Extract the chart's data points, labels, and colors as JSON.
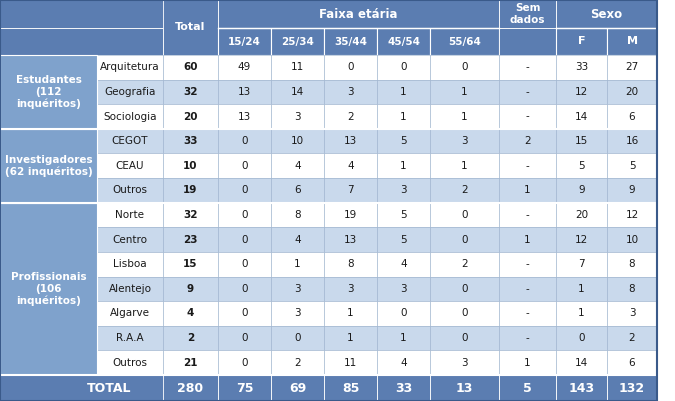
{
  "header_bg": "#5b7db1",
  "header_text_color": "#ffffff",
  "group_bg": "#7fa2cc",
  "group_text_color": "#ffffff",
  "total_bg": "#5b7db1",
  "total_text_color": "#ffffff",
  "alt_row_color": "#c9d9ec",
  "white_row_color": "#ffffff",
  "groups": [
    {
      "label": "Estudantes\n(112\ninquéritos)",
      "rows": [
        {
          "sub": "Arquitetura",
          "total": "60",
          "v1524": "49",
          "v2534": "11",
          "v3544": "0",
          "v4554": "0",
          "v5564": "0",
          "sem": "-",
          "f": "33",
          "m": "27"
        },
        {
          "sub": "Geografia",
          "total": "32",
          "v1524": "13",
          "v2534": "14",
          "v3544": "3",
          "v4554": "1",
          "v5564": "1",
          "sem": "-",
          "f": "12",
          "m": "20"
        },
        {
          "sub": "Sociologia",
          "total": "20",
          "v1524": "13",
          "v2534": "3",
          "v3544": "2",
          "v4554": "1",
          "v5564": "1",
          "sem": "-",
          "f": "14",
          "m": "6"
        }
      ],
      "bg_cycle": [
        "#ffffff",
        "#c9d9ec",
        "#ffffff"
      ]
    },
    {
      "label": "Investigadores\n(62 inquéritos)",
      "rows": [
        {
          "sub": "CEGOT",
          "total": "33",
          "v1524": "0",
          "v2534": "10",
          "v3544": "13",
          "v4554": "5",
          "v5564": "3",
          "sem": "2",
          "f": "15",
          "m": "16"
        },
        {
          "sub": "CEAU",
          "total": "10",
          "v1524": "0",
          "v2534": "4",
          "v3544": "4",
          "v4554": "1",
          "v5564": "1",
          "sem": "-",
          "f": "5",
          "m": "5"
        },
        {
          "sub": "Outros",
          "total": "19",
          "v1524": "0",
          "v2534": "6",
          "v3544": "7",
          "v4554": "3",
          "v5564": "2",
          "sem": "1",
          "f": "9",
          "m": "9"
        }
      ],
      "bg_cycle": [
        "#c9d9ec",
        "#ffffff",
        "#c9d9ec"
      ]
    },
    {
      "label": "Profissionais\n(106\ninquéritos)",
      "rows": [
        {
          "sub": "Norte",
          "total": "32",
          "v1524": "0",
          "v2534": "8",
          "v3544": "19",
          "v4554": "5",
          "v5564": "0",
          "sem": "-",
          "f": "20",
          "m": "12"
        },
        {
          "sub": "Centro",
          "total": "23",
          "v1524": "0",
          "v2534": "4",
          "v3544": "13",
          "v4554": "5",
          "v5564": "0",
          "sem": "1",
          "f": "12",
          "m": "10"
        },
        {
          "sub": "Lisboa",
          "total": "15",
          "v1524": "0",
          "v2534": "1",
          "v3544": "8",
          "v4554": "4",
          "v5564": "2",
          "sem": "-",
          "f": "7",
          "m": "8"
        },
        {
          "sub": "Alentejo",
          "total": "9",
          "v1524": "0",
          "v2534": "3",
          "v3544": "3",
          "v4554": "3",
          "v5564": "0",
          "sem": "-",
          "f": "1",
          "m": "8"
        },
        {
          "sub": "Algarve",
          "total": "4",
          "v1524": "0",
          "v2534": "3",
          "v3544": "1",
          "v4554": "0",
          "v5564": "0",
          "sem": "-",
          "f": "1",
          "m": "3"
        },
        {
          "sub": "R.A.A",
          "total": "2",
          "v1524": "0",
          "v2534": "0",
          "v3544": "1",
          "v4554": "1",
          "v5564": "0",
          "sem": "-",
          "f": "0",
          "m": "2"
        },
        {
          "sub": "Outros",
          "total": "21",
          "v1524": "0",
          "v2534": "2",
          "v3544": "11",
          "v4554": "4",
          "v5564": "3",
          "sem": "1",
          "f": "14",
          "m": "6"
        }
      ],
      "bg_cycle": [
        "#ffffff",
        "#c9d9ec",
        "#ffffff",
        "#c9d9ec",
        "#ffffff",
        "#c9d9ec",
        "#ffffff"
      ]
    }
  ],
  "total_row": {
    "total": "280",
    "v1524": "75",
    "v2534": "69",
    "v3544": "85",
    "v4554": "33",
    "v5564": "13",
    "sem": "5",
    "f": "143",
    "m": "132"
  }
}
